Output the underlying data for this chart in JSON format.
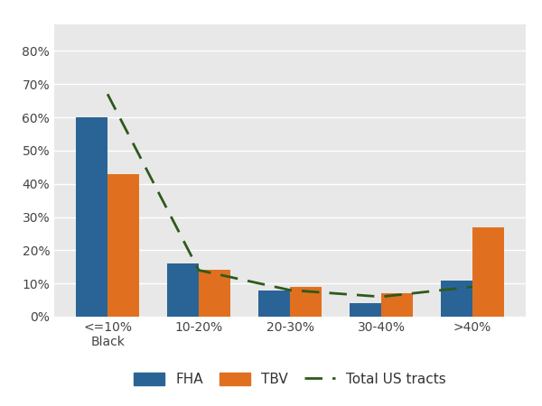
{
  "categories": [
    "<=10%\nBlack",
    "10-20%",
    "20-30%",
    "30-40%",
    ">40%"
  ],
  "fha_values": [
    60,
    16,
    8,
    4,
    11
  ],
  "tbv_values": [
    43,
    14,
    9,
    7,
    27
  ],
  "line_values": [
    67,
    14,
    8,
    6,
    9
  ],
  "fha_color": "#2A6496",
  "tbv_color": "#E07020",
  "line_color": "#2D5A1B",
  "plot_bg_color": "#E8E8E8",
  "fig_bg_color": "#FFFFFF",
  "ylim": [
    0,
    88
  ],
  "yticks": [
    0,
    10,
    20,
    30,
    40,
    50,
    60,
    70,
    80
  ],
  "bar_width": 0.35,
  "legend_labels": [
    "FHA",
    "TBV",
    "Total US tracts"
  ],
  "tick_fontsize": 10,
  "legend_fontsize": 11
}
